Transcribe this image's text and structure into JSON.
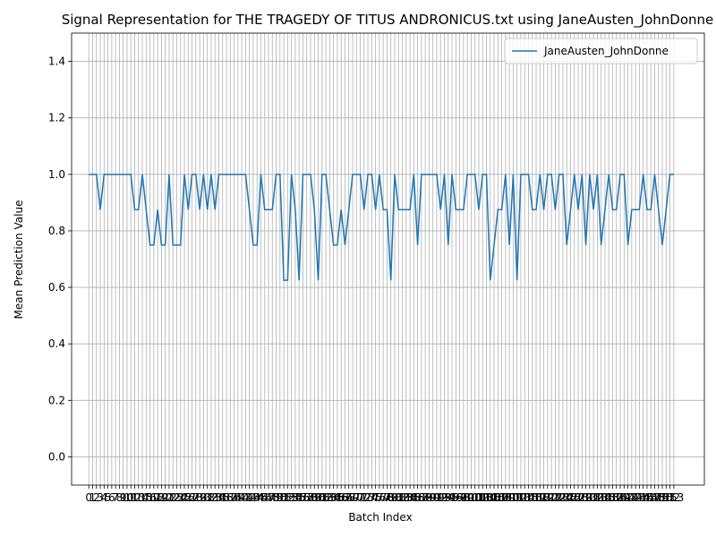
{
  "chart_data": {
    "type": "line",
    "title": "Signal Representation for THE TRAGEDY OF TITUS ANDRONICUS.txt using JaneAusten_JohnDonne",
    "xlabel": "Batch Index",
    "ylabel": "Mean Prediction Value",
    "x": [
      0,
      1,
      2,
      3,
      4,
      5,
      6,
      7,
      8,
      9,
      10,
      11,
      12,
      13,
      14,
      15,
      16,
      17,
      18,
      19,
      20,
      21,
      22,
      23,
      24,
      25,
      26,
      27,
      28,
      29,
      30,
      31,
      32,
      33,
      34,
      35,
      36,
      37,
      38,
      39,
      40,
      41,
      42,
      43,
      44,
      45,
      46,
      47,
      48,
      49,
      50,
      51,
      52,
      53,
      54,
      55,
      56,
      57,
      58,
      59,
      60,
      61,
      62,
      63,
      64,
      65,
      66,
      67,
      68,
      69,
      70,
      71,
      72,
      73,
      74,
      75,
      76,
      77,
      78,
      79,
      80,
      81,
      82,
      83,
      84,
      85,
      86,
      87,
      88,
      89,
      90,
      91,
      92,
      93,
      94,
      95,
      96,
      97,
      98,
      99,
      100,
      101,
      102,
      103,
      104,
      105,
      106,
      107,
      108,
      109,
      110,
      111,
      112,
      113,
      114,
      115,
      116,
      117,
      118,
      119,
      120,
      121,
      122,
      123,
      124,
      125,
      126,
      127,
      128,
      129,
      130,
      131,
      132,
      133,
      134,
      135,
      136,
      137,
      138,
      139,
      140,
      141,
      142,
      143,
      144,
      145,
      146,
      147,
      148,
      149,
      150,
      151,
      152,
      153
    ],
    "series": [
      {
        "name": "JaneAusten_JohnDonne",
        "color": "#1f77b4",
        "values": [
          1,
          1,
          1,
          0.875,
          1,
          1,
          1,
          1,
          1,
          1,
          1,
          1,
          0.875,
          0.875,
          1,
          0.875,
          0.75,
          0.75,
          0.875,
          0.75,
          0.75,
          1,
          0.75,
          0.75,
          0.75,
          1,
          0.875,
          1,
          1,
          0.875,
          1,
          0.875,
          1,
          0.875,
          1,
          1,
          1,
          1,
          1,
          1,
          1,
          1,
          0.875,
          0.75,
          0.75,
          1,
          0.875,
          0.875,
          0.875,
          1,
          1,
          0.625,
          0.625,
          1,
          0.875,
          0.625,
          1,
          1,
          1,
          0.875,
          0.625,
          1,
          1,
          0.875,
          0.75,
          0.75,
          0.875,
          0.75,
          0.875,
          1,
          1,
          1,
          0.875,
          1,
          1,
          0.875,
          1,
          0.875,
          0.875,
          0.625,
          1,
          0.875,
          0.875,
          0.875,
          0.875,
          1,
          0.75,
          1,
          1,
          1,
          1,
          1,
          0.875,
          1,
          0.75,
          1,
          0.875,
          0.875,
          0.875,
          1,
          1,
          1,
          0.875,
          1,
          1,
          0.625,
          0.75,
          0.875,
          0.875,
          1,
          0.75,
          1,
          0.625,
          1,
          1,
          1,
          0.875,
          0.875,
          1,
          0.875,
          1,
          1,
          0.875,
          1,
          1,
          0.75,
          0.875,
          1,
          0.875,
          1,
          0.75,
          1,
          0.875,
          1,
          0.75,
          0.875,
          1,
          0.875,
          0.875,
          1,
          1,
          0.75,
          0.875,
          0.875,
          0.875,
          1,
          0.875,
          0.875,
          1,
          0.875,
          0.75,
          0.875,
          1,
          1
        ]
      }
    ],
    "xlim": [
      -4.5,
      161
    ],
    "xticks": [
      0,
      1,
      2,
      3,
      4,
      5,
      6,
      7,
      8,
      9,
      10,
      11,
      12,
      13,
      14,
      15,
      16,
      17,
      18,
      19,
      20,
      21,
      22,
      23,
      24,
      25,
      26,
      27,
      28,
      29,
      30,
      31,
      32,
      33,
      34,
      35,
      36,
      37,
      38,
      39,
      40,
      41,
      42,
      43,
      44,
      45,
      46,
      47,
      48,
      49,
      50,
      51,
      52,
      53,
      54,
      55,
      56,
      57,
      58,
      59,
      60,
      61,
      62,
      63,
      64,
      65,
      66,
      67,
      68,
      69,
      70,
      71,
      72,
      73,
      74,
      75,
      76,
      77,
      78,
      79,
      80,
      81,
      82,
      83,
      84,
      85,
      86,
      87,
      88,
      89,
      90,
      91,
      92,
      93,
      94,
      95,
      96,
      97,
      98,
      99,
      100,
      101,
      102,
      103,
      104,
      105,
      106,
      107,
      108,
      109,
      110,
      111,
      112,
      113,
      114,
      115,
      116,
      117,
      118,
      119,
      120,
      121,
      122,
      123,
      124,
      125,
      126,
      127,
      128,
      129,
      130,
      131,
      132,
      133,
      134,
      135,
      136,
      137,
      138,
      139,
      140,
      141,
      142,
      143,
      144,
      145,
      146,
      147,
      148,
      149,
      150,
      151,
      152,
      153
    ],
    "ylim": [
      -0.1,
      1.5
    ],
    "yticks": [
      {
        "value": 0,
        "label": "0.0"
      },
      0.2,
      0.4,
      0.6,
      0.8,
      {
        "value": 1,
        "label": "1.0"
      },
      1.2,
      1.4
    ],
    "grid": true,
    "legend": "upper right"
  }
}
